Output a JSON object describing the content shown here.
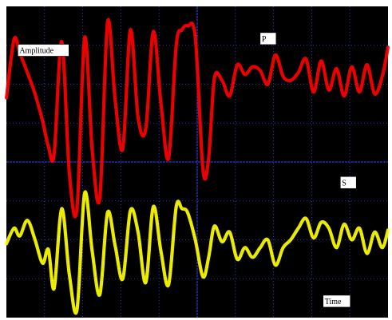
{
  "chart_data": {
    "type": "line",
    "title": "",
    "xlabel": "Time",
    "ylabel": "Amplitude",
    "grid": true,
    "background": "#000000",
    "grid_color": "#3344ff",
    "xlim": [
      0,
      10
    ],
    "ylim": [
      -8,
      8
    ],
    "series": [
      {
        "name": "P",
        "color": "#ff0000",
        "x": [
          0.0,
          0.2,
          0.35,
          0.55,
          0.75,
          0.95,
          1.1,
          1.25,
          1.45,
          1.65,
          1.85,
          2.05,
          2.25,
          2.45,
          2.65,
          2.85,
          3.05,
          3.25,
          3.45,
          3.65,
          3.85,
          4.05,
          4.25,
          4.45,
          4.6,
          4.75,
          4.95,
          5.15,
          5.3,
          5.45,
          5.65,
          5.85,
          6.05,
          6.25,
          6.45,
          6.65,
          6.85,
          7.05,
          7.25,
          7.45,
          7.65,
          7.85,
          8.05,
          8.25,
          8.45,
          8.65,
          8.85,
          9.05,
          9.25,
          9.45,
          9.65,
          9.85,
          10.0
        ],
        "y": [
          3.3,
          6.3,
          5.6,
          4.6,
          3.5,
          2.1,
          0.8,
          0.4,
          6.2,
          -0.6,
          -2.4,
          6.4,
          0.6,
          -1.8,
          7.2,
          3.2,
          0.7,
          6.8,
          2.3,
          1.7,
          6.7,
          3.0,
          0.2,
          6.0,
          6.8,
          7.0,
          6.4,
          -0.4,
          0.2,
          4.3,
          4.2,
          3.4,
          5.0,
          4.5,
          4.9,
          4.7,
          4.0,
          5.5,
          4.4,
          4.2,
          4.6,
          5.3,
          3.6,
          5.2,
          3.7,
          4.8,
          3.4,
          4.9,
          3.6,
          5.0,
          3.5,
          4.4,
          5.9
        ]
      },
      {
        "name": "S",
        "color": "#ffff00",
        "x": [
          0.0,
          0.2,
          0.35,
          0.55,
          0.75,
          0.95,
          1.1,
          1.25,
          1.45,
          1.65,
          1.85,
          2.05,
          2.25,
          2.45,
          2.65,
          2.85,
          3.05,
          3.25,
          3.45,
          3.65,
          3.85,
          4.05,
          4.25,
          4.45,
          4.6,
          4.75,
          4.95,
          5.15,
          5.3,
          5.45,
          5.65,
          5.85,
          6.05,
          6.25,
          6.45,
          6.65,
          6.85,
          7.05,
          7.25,
          7.45,
          7.65,
          7.85,
          8.05,
          8.25,
          8.45,
          8.65,
          8.85,
          9.05,
          9.25,
          9.45,
          9.65,
          9.85,
          10.0
        ],
        "y": [
          -4.2,
          -3.4,
          -3.8,
          -3.0,
          -4.0,
          -5.2,
          -4.5,
          -6.5,
          -2.4,
          -5.8,
          -7.6,
          -1.6,
          -4.6,
          -6.8,
          -2.6,
          -4.3,
          -6.0,
          -2.5,
          -3.6,
          -6.2,
          -2.3,
          -4.6,
          -6.3,
          -2.3,
          -2.4,
          -2.6,
          -4.0,
          -5.9,
          -4.9,
          -3.3,
          -4.1,
          -3.6,
          -5.0,
          -4.4,
          -4.9,
          -4.4,
          -4.0,
          -5.3,
          -4.4,
          -4.0,
          -3.4,
          -2.9,
          -3.9,
          -3.1,
          -3.4,
          -4.4,
          -3.2,
          -4.0,
          -3.4,
          -4.7,
          -3.6,
          -4.4,
          -3.5
        ]
      }
    ],
    "annotations": [
      {
        "text": "Amplitude",
        "x": 0.3,
        "y": 5.6
      },
      {
        "text": "P",
        "x": 6.65,
        "y": 6.2
      },
      {
        "text": "S",
        "x": 8.75,
        "y": -1.2
      },
      {
        "text": "Time",
        "x": 8.3,
        "y": -7.3
      }
    ]
  }
}
